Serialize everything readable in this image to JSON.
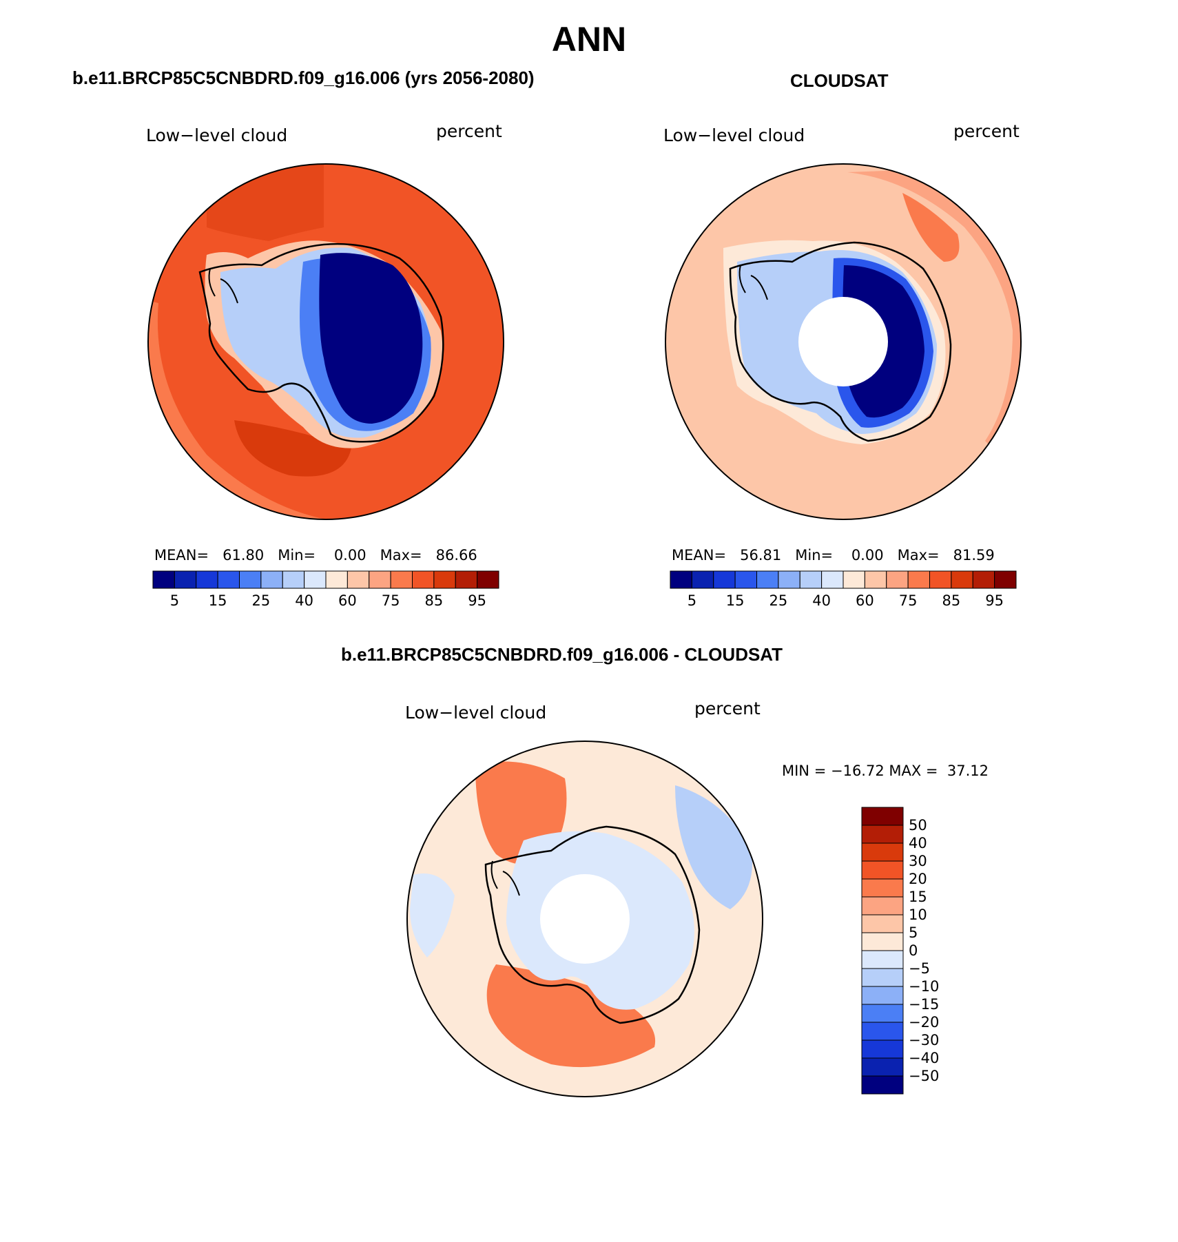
{
  "figure": {
    "season": "ANN",
    "model_title": "b.e11.BRCP85C5CNBDRD.f09_g16.006 (yrs 2056-2080)",
    "obs_title": "CLOUDSAT",
    "diff_title": "b.e11.BRCP85C5CNBDRD.f09_g16.006 - CLOUDSAT"
  },
  "panels": {
    "model": {
      "variable": "Low−level cloud",
      "units": "percent",
      "mean_label": "MEAN=",
      "mean": "61.80",
      "min_label": "Min=",
      "min": "0.00",
      "max_label": "Max=",
      "max": "86.66"
    },
    "obs": {
      "variable": "Low−level cloud",
      "units": "percent",
      "mean_label": "MEAN=",
      "mean": "56.81",
      "min_label": "Min=",
      "min": "0.00",
      "max_label": "Max=",
      "max": "81.59"
    },
    "diff": {
      "variable": "Low−level cloud",
      "units": "percent",
      "min_label": "MIN =",
      "min": "−16.72",
      "max_label": "MAX =",
      "max": "37.12"
    }
  },
  "colorbars": {
    "abs_ticks": [
      "5",
      "15",
      "25",
      "40",
      "60",
      "75",
      "85",
      "95"
    ],
    "abs_colors": [
      "#00007f",
      "#0a22b0",
      "#1638d8",
      "#2a56ec",
      "#4b7ff5",
      "#8cb0f7",
      "#b6cff9",
      "#dbe8fc",
      "#fde9d8",
      "#fdc6a8",
      "#fca482",
      "#fa7a4c",
      "#f15426",
      "#d93a0c",
      "#b31e06",
      "#7f0000"
    ],
    "diff_ticks": [
      "50",
      "40",
      "30",
      "20",
      "15",
      "10",
      "5",
      "0",
      "−5",
      "−10",
      "−15",
      "−20",
      "−30",
      "−40",
      "−50"
    ],
    "diff_colors": [
      "#7f0000",
      "#b31e06",
      "#d93a0c",
      "#f15426",
      "#fa7a4c",
      "#fca482",
      "#fdc6a8",
      "#fde9d8",
      "#dbe8fc",
      "#b6cff9",
      "#8cb0f7",
      "#4b7ff5",
      "#2a56ec",
      "#1638d8",
      "#0a22b0",
      "#00007f"
    ]
  },
  "colors": {
    "ocean_model": "#f15426",
    "ocean_model_high": "#d93a0c",
    "ocean_obs": "#fdc6a8",
    "ocean_obs_high": "#fa7a4c",
    "ocean_diff": "#fde9d8",
    "diff_warm": "#fa7a4c",
    "diff_cool": "#dbe8fc",
    "ice_low": "#00007f",
    "coast": "#000000",
    "polar_hole": "#ffffff"
  }
}
